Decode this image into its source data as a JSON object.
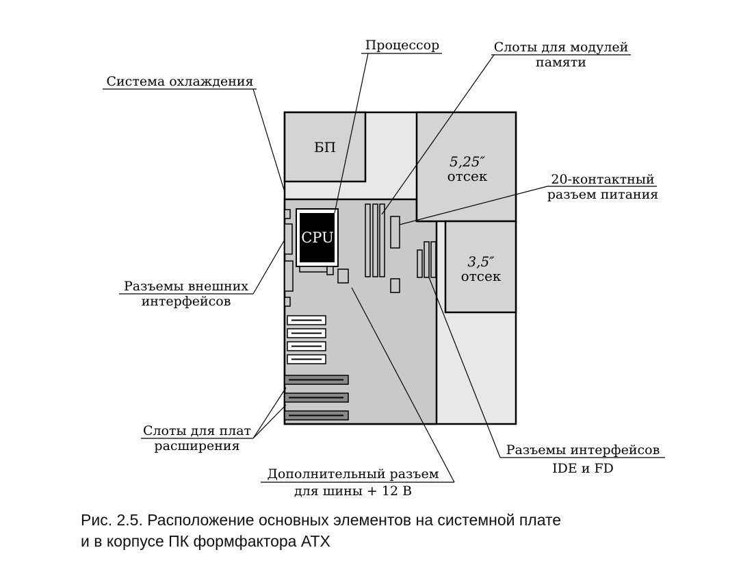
{
  "labels": {
    "cooling": "Система охлаждения",
    "processor": "Процессор",
    "memory_slots_1": "Слоты для модулей",
    "memory_slots_2": "памяти",
    "power_connector_1": "20-контактный",
    "power_connector_2": "разъем питания",
    "external_ports_1": "Разъемы внешних",
    "external_ports_2": "интерфейсов",
    "expansion_slots_1": "Слоты для плат",
    "expansion_slots_2": "расширения",
    "ide_fd_1": "Разъемы интерфейсов",
    "ide_fd_2": "IDE и FD",
    "aux_power_1": "Дополнительный разъем",
    "aux_power_2": "для шины + 12 В"
  },
  "boxes": {
    "psu": "БП",
    "cpu": "CPU",
    "bay525_1": "5,25″",
    "bay525_2": "отсек",
    "bay35_1": "3,5″",
    "bay35_2": "отсек"
  },
  "caption": {
    "line1": "Рис. 2.5. Расположение основных элементов на системной плате",
    "line2": "и в корпусе ПК формфактора ATX"
  },
  "colors": {
    "case_fill": "#e8e8e8",
    "board_fill": "#c9c9c9",
    "bay_fill": "#d4d4d4",
    "cpu_fill": "#000000",
    "slot_fill": "#888888"
  }
}
